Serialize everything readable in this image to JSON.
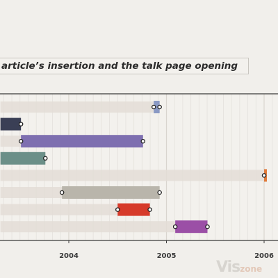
{
  "title": "article’s insertion and the talk page opening",
  "watermark": {
    "main": "Vis",
    "suffix": "zone"
  },
  "chart_data": {
    "type": "range-bar",
    "x_axis_ticks": [
      "2004",
      "2005",
      "2006"
    ],
    "x_range": [
      2003.3,
      2006.15
    ],
    "grid": "vertical-minor",
    "rows": [
      {
        "span_start": 2003.3,
        "span_end": 2004.93,
        "bar_start": 2004.87,
        "bar_end": 2004.93,
        "color": "#8a99c4",
        "markers": [
          2004.87,
          2004.93
        ]
      },
      {
        "span_start": 2003.3,
        "span_end": 2003.51,
        "bar_start": 2003.3,
        "bar_end": 2003.51,
        "color": "#3a3f55",
        "markers": [
          2003.51
        ]
      },
      {
        "span_start": 2003.3,
        "span_end": 2004.76,
        "bar_start": 2003.51,
        "bar_end": 2004.76,
        "color": "#7e6fb0",
        "markers": [
          2003.51,
          2004.76
        ]
      },
      {
        "span_start": 2003.3,
        "span_end": 2003.76,
        "bar_start": 2003.3,
        "bar_end": 2003.76,
        "color": "#6b8f88",
        "markers": [
          2003.76
        ]
      },
      {
        "span_start": 2003.3,
        "span_end": 2006.0,
        "bar_start": 2006.0,
        "bar_end": 2006.02,
        "color": "#e07a3a",
        "markers": [
          2006.0
        ]
      },
      {
        "span_start": 2003.3,
        "span_end": 2004.93,
        "bar_start": 2003.93,
        "bar_end": 2004.93,
        "color": "#b9b5ab",
        "markers": [
          2003.93,
          2004.93
        ]
      },
      {
        "span_start": 2003.3,
        "span_end": 2004.83,
        "bar_start": 2004.5,
        "bar_end": 2004.83,
        "color": "#d63a2a",
        "markers": [
          2004.5,
          2004.83
        ]
      },
      {
        "span_start": 2003.3,
        "span_end": 2005.42,
        "bar_start": 2005.09,
        "bar_end": 2005.42,
        "color": "#9b4fa6",
        "markers": [
          2005.09,
          2005.42
        ]
      }
    ]
  }
}
